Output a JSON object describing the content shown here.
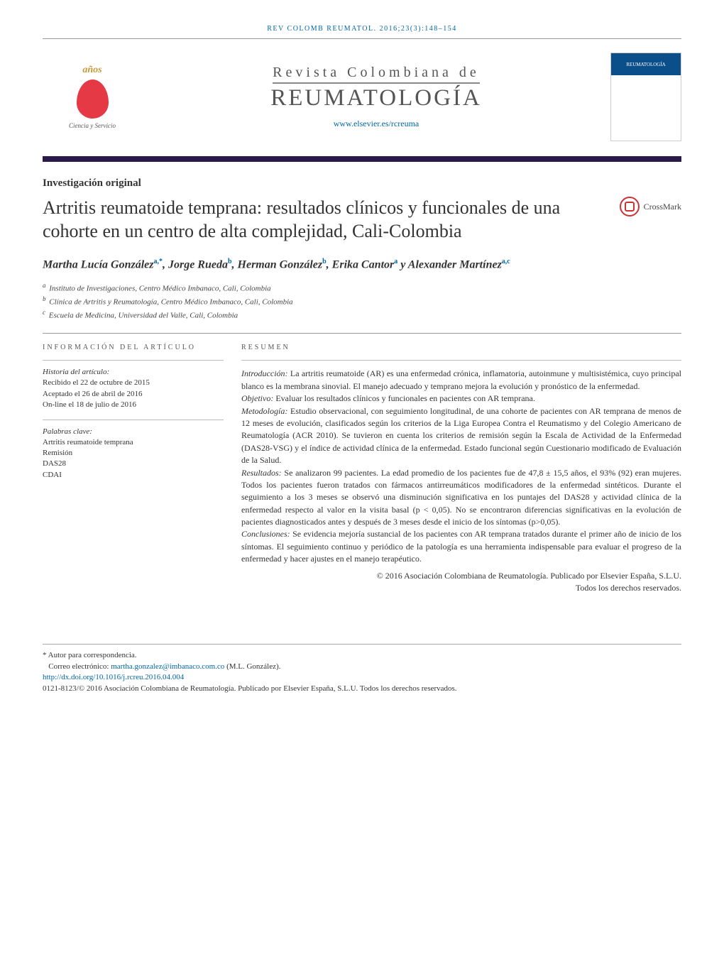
{
  "running_header": "REV COLOMB REUMATOL. 2016;23(3):148–154",
  "logo": {
    "top_text": "años",
    "bottom_text": "Ciencia y\nServicio"
  },
  "journal": {
    "supertitle": "Revista Colombiana de",
    "main_title": "REUMATOLOGÍA",
    "url": "www.elsevier.es/rcreuma",
    "cover_label": "REUMATOLOGÍA"
  },
  "article_type": "Investigación original",
  "crossmark_label": "CrossMark",
  "title": "Artritis reumatoide temprana: resultados clínicos y funcionales de una cohorte en un centro de alta complejidad, Cali-Colombia",
  "authors": {
    "a1": "Martha Lucía González",
    "a1_aff": "a,*",
    "a2": "Jorge Rueda",
    "a2_aff": "b",
    "a3": "Herman González",
    "a3_aff": "b",
    "a4": "Erika Cantor",
    "a4_aff": "a",
    "and": "y",
    "a5": "Alexander Martínez",
    "a5_aff": "a,c"
  },
  "affiliations": {
    "a": "Instituto de Investigaciones, Centro Médico Imbanaco, Cali, Colombia",
    "b": "Clínica de Artritis y Reumatología, Centro Médico Imbanaco, Cali, Colombia",
    "c": "Escuela de Medicina, Universidad del Valle, Cali, Colombia"
  },
  "info_label": "INFORMACIÓN DEL ARTÍCULO",
  "history": {
    "label": "Historia del artículo:",
    "received": "Recibido el 22 de octubre de 2015",
    "accepted": "Aceptado el 26 de abril de 2016",
    "online": "On-line el 18 de julio de 2016"
  },
  "keywords": {
    "label": "Palabras clave:",
    "k1": "Artritis reumatoide temprana",
    "k2": "Remisión",
    "k3": "DAS28",
    "k4": "CDAI"
  },
  "abstract_label": "RESUMEN",
  "abstract": {
    "intro_label": "Introducción:",
    "intro": "La artritis reumatoide (AR) es una enfermedad crónica, inflamatoria, autoinmune y multisistémica, cuyo principal blanco es la membrana sinovial. El manejo adecuado y temprano mejora la evolución y pronóstico de la enfermedad.",
    "obj_label": "Objetivo:",
    "obj": "Evaluar los resultados clínicos y funcionales en pacientes con AR temprana.",
    "meth_label": "Metodología:",
    "meth": "Estudio observacional, con seguimiento longitudinal, de una cohorte de pacientes con AR temprana de menos de 12 meses de evolución, clasificados según los criterios de la Liga Europea Contra el Reumatismo y del Colegio Americano de Reumatología (ACR 2010). Se tuvieron en cuenta los criterios de remisión según la Escala de Actividad de la Enfermedad (DAS28-VSG) y el índice de actividad clínica de la enfermedad. Estado funcional según Cuestionario modificado de Evaluación de la Salud.",
    "res_label": "Resultados:",
    "res": "Se analizaron 99 pacientes. La edad promedio de los pacientes fue de 47,8 ± 15,5 años, el 93% (92) eran mujeres. Todos los pacientes fueron tratados con fármacos antirreumáticos modificadores de la enfermedad sintéticos. Durante el seguimiento a los 3 meses se observó una disminución significativa en los puntajes del DAS28 y actividad clínica de la enfermedad respecto al valor en la visita basal (p < 0,05). No se encontraron diferencias significativas en la evolución de pacientes diagnosticados antes y después de 3 meses desde el inicio de los síntomas (p>0,05).",
    "concl_label": "Conclusiones:",
    "concl": "Se evidencia mejoría sustancial de los pacientes con AR temprana tratados durante el primer año de inicio de los síntomas. El seguimiento continuo y periódico de la patología es una herramienta indispensable para evaluar el progreso de la enfermedad y hacer ajustes en el manejo terapéutico."
  },
  "copyright": {
    "line1": "© 2016 Asociación Colombiana de Reumatología. Publicado por Elsevier España, S.L.U.",
    "line2": "Todos los derechos reservados."
  },
  "footnotes": {
    "corr_label": "* Autor para correspondencia.",
    "email_label": "Correo electrónico:",
    "email": "martha.gonzalez@imbanaco.com.co",
    "email_name": "(M.L. González).",
    "doi": "http://dx.doi.org/10.1016/j.rcreu.2016.04.004",
    "issn_line": "0121-8123/© 2016 Asociación Colombiana de Reumatología. Publicado por Elsevier España, S.L.U. Todos los derechos reservados."
  },
  "colors": {
    "link": "#0066a4",
    "purple_bar": "#2a1a4a",
    "logo_red": "#e63946",
    "logo_gold": "#c49a3a",
    "cover_blue": "#0b4f8a"
  }
}
